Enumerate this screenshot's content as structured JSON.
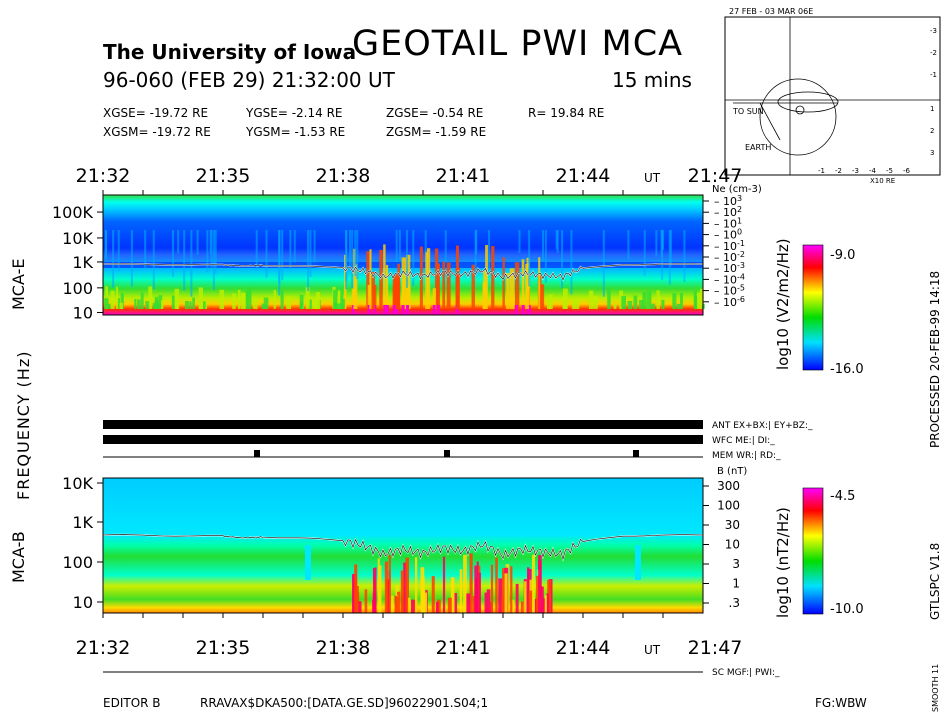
{
  "header": {
    "institution": "The University of Iowa",
    "instrument": "GEOTAIL PWI MCA",
    "datetime": "96-060 (FEB 29) 21:32:00 UT",
    "span": "15 mins"
  },
  "coords": {
    "gse": [
      {
        "label": "XGSE=",
        "value": "-19.72 RE"
      },
      {
        "label": "YGSE=",
        "value": "-2.14 RE"
      },
      {
        "label": "ZGSE=",
        "value": "-0.54 RE"
      },
      {
        "label": "R=",
        "value": "19.84 RE"
      }
    ],
    "gsm": [
      {
        "label": "XGSM=",
        "value": "-19.72 RE"
      },
      {
        "label": "YGSM=",
        "value": "-1.53 RE"
      },
      {
        "label": "ZGSM=",
        "value": "-1.59 RE"
      }
    ]
  },
  "orbit": {
    "title": "27 FEB - 03 MAR 06E",
    "label_sun": "TO SUN",
    "label_earth": "EARTH",
    "xlabel": "X10 RE",
    "xticks": [
      "-1",
      "-2",
      "-3",
      "-4",
      "-5",
      "-6"
    ],
    "yticks": [
      "-3",
      "-2",
      "-1",
      "1",
      "2",
      "3"
    ]
  },
  "time_axis": {
    "ticks": [
      "21:32",
      "21:35",
      "21:38",
      "21:41",
      "21:44",
      "21:47"
    ],
    "ut_label": "UT"
  },
  "side_text": {
    "processed": "PROCESSED 20-FEB-99 14:18",
    "version": "GTLSPC V1.8",
    "smooth": "SMOOTH 11",
    "frequency": "FREQUENCY (Hz)"
  },
  "status": {
    "ant": "ANT EX+BX:| EY+BZ:_",
    "wfc": "WFC ME:| DI:_",
    "mem": "MEM WR:| RD:_",
    "sc": "SC MGF:| PWI:_"
  },
  "footer": {
    "editor": "EDITOR B",
    "file": "RRAVAX$DKA500:[DATA.GE.SD]96022901.S04;1",
    "fg": "FG:WBW"
  },
  "colors": {
    "spectrum": [
      "#ff00ff",
      "#ff0000",
      "#ffff00",
      "#00dd00",
      "#00e0ff",
      "#0000ff"
    ],
    "background": "#ffffff"
  },
  "chart_data": [
    {
      "type": "heatmap",
      "panel": "MCA-E",
      "ylabel": "MCA-E",
      "yscale": "log",
      "yticks": [
        "100K",
        "10K",
        "1K",
        "100",
        "10"
      ],
      "colorbar": {
        "label": "log10 (V2/m2/Hz)",
        "max": "-9.0",
        "min": "-16.0"
      },
      "right_axis": {
        "label": "Ne (cm-3)",
        "ticks": [
          "10^3",
          "10^2",
          "10^1",
          "10^0",
          "10^-1",
          "10^-2",
          "10^-3",
          "10^-4",
          "10^-5",
          "10^-6"
        ]
      },
      "overlay_series": {
        "name": "electron plasma frequency",
        "t_min": [
          0,
          1,
          2,
          3,
          3.5,
          4,
          5,
          6,
          6.5,
          7,
          7.5,
          8,
          8.5,
          9,
          9.5,
          10,
          10.5,
          11,
          11.5,
          12,
          13,
          14,
          15
        ],
        "f_hz": [
          450,
          440,
          430,
          420,
          380,
          400,
          370,
          330,
          250,
          150,
          200,
          160,
          220,
          180,
          260,
          140,
          200,
          170,
          150,
          300,
          430,
          440,
          450
        ]
      }
    },
    {
      "type": "heatmap",
      "panel": "MCA-B",
      "ylabel": "MCA-B",
      "yscale": "log",
      "yticks": [
        "10K",
        "1K",
        "100",
        "10"
      ],
      "colorbar": {
        "label": "log10 (nT2/Hz)",
        "max": "-4.5",
        "min": "-10.0"
      },
      "right_axis": {
        "label": "B (nT)",
        "ticks": [
          "300",
          "100",
          "30",
          "10",
          "3",
          "1",
          ".3"
        ]
      },
      "overlay_series": {
        "name": "electron cyclotron frequency",
        "t_min": [
          0,
          1,
          2,
          3,
          3.5,
          4,
          5,
          6,
          6.5,
          7,
          7.5,
          8,
          8.5,
          9,
          9.5,
          10,
          10.5,
          11,
          11.5,
          12,
          13,
          14,
          15
        ],
        "f_hz": [
          450,
          440,
          430,
          420,
          380,
          400,
          370,
          330,
          250,
          150,
          200,
          160,
          220,
          180,
          260,
          140,
          200,
          170,
          150,
          300,
          430,
          440,
          450
        ]
      }
    }
  ]
}
